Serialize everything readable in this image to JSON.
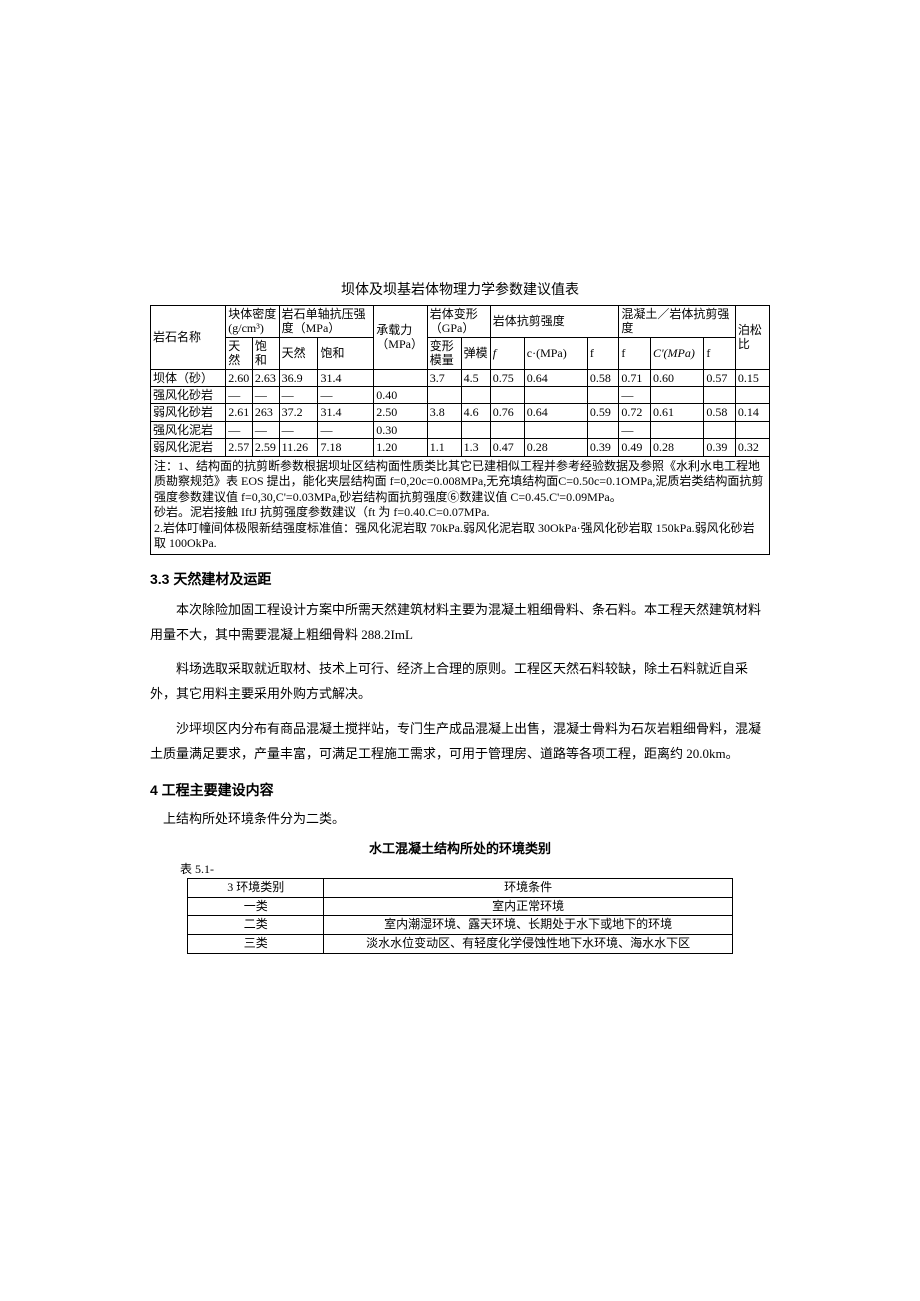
{
  "table1": {
    "title": "坝体及坝基岩体物理力学参数建议值表",
    "headers": {
      "h1": "岩石名称",
      "h2": "块体密度",
      "h2_unit": "(g/cm³)",
      "h3": "岩石单轴抗压强度（MPa）",
      "h4": "承载力（MPa）",
      "h5": "岩体变形（GPa）",
      "h6": "岩体抗剪强度",
      "h7": "混凝土／岩体抗剪强度",
      "h8": "泊松比",
      "sub_natural": "天然",
      "sub_sat": "饱和",
      "sub_deform": "变形模量",
      "sub_elastic": "弹模",
      "sub_f": "f",
      "sub_c": "c·(MPa)",
      "sub_fp": "f",
      "sub_fp2": "f",
      "sub_cp": "C'(MPa)",
      "sub_fp3": "f"
    },
    "rows": [
      {
        "name": "坝体（砂）",
        "d1": "2.60",
        "d2": "2.63",
        "uc1": "36.9",
        "uc2": "31.4",
        "bc": "",
        "dm": "3.7",
        "em": "4.5",
        "f1": "0.75",
        "c1": "0.64",
        "fp1": "0.58",
        "fp2": "0.71",
        "cp": "0.60",
        "fp3": "0.57",
        "pr": "0.15"
      },
      {
        "name": "强风化砂岩",
        "d1": "—",
        "d2": "—",
        "uc1": "—",
        "uc2": "—",
        "bc": "0.40",
        "dm": "",
        "em": "",
        "f1": "",
        "c1": "",
        "fp1": "",
        "fp2": "—",
        "cp": "",
        "fp3": "",
        "pr": ""
      },
      {
        "name": "弱风化砂岩",
        "d1": "2.61",
        "d2": "263",
        "uc1": "37.2",
        "uc2": "31.4",
        "bc": "2.50",
        "dm": "3.8",
        "em": "4.6",
        "f1": "0.76",
        "c1": "0.64",
        "fp1": "0.59",
        "fp2": "0.72",
        "cp": "0.61",
        "fp3": "0.58",
        "pr": "0.14"
      },
      {
        "name": "强风化泥岩",
        "d1": "—",
        "d2": "—",
        "uc1": "—",
        "uc2": "—",
        "bc": "0.30",
        "dm": "",
        "em": "",
        "f1": "",
        "c1": "",
        "fp1": "",
        "fp2": "—",
        "cp": "",
        "fp3": "",
        "pr": ""
      },
      {
        "name": "弱风化泥岩",
        "d1": "2.57",
        "d2": "2.59",
        "uc1": "11.26",
        "uc2": "7.18",
        "bc": "1.20",
        "dm": "1.1",
        "em": "1.3",
        "f1": "0.47",
        "c1": "0.28",
        "fp1": "0.39",
        "fp2": "0.49",
        "cp": "0.28",
        "fp3": "0.39",
        "pr": "0.32"
      }
    ],
    "note": "注：1、结构面的抗剪断参数根据坝址区结构面性质类比其它已建相似工程并参考经验数据及参照《水利水电工程地质勘察规范》表 EOS 提出，能化夹层结构面 f=0,20c=0.008MPa,无充填结构面C=0.50c=0.1OMPa,泥质岩类结构面抗剪强度参数建议值 f=0,30,C'=0.03MPa,砂岩结构面抗剪强度⑥数建议值 C=0.45.C'=0.09MPa。\n砂岩。泥岩接触 IftJ 抗剪强度参数建议（ft 为 f=0.40.C=0.07MPa.\n2.岩体叮幢间体极限新结强度标准值：强风化泥岩取 70kPa.弱风化泥岩取 30OkPa·强风化砂岩取 150kPa.弱风化砂岩取 100OkPa."
  },
  "section33_title": "3.3 天然建材及运距",
  "section33_p1": "本次除险加固工程设计方案中所需天然建筑材料主要为混凝土粗细骨料、条石料。本工程天然建筑材料用量不大，其中需要混凝上粗细骨料 288.2ImL",
  "section33_p2": "料场选取采取就近取材、技术上可行、经济上合理的原则。工程区天然石料较缺，除土石料就近自采外，其它用料主要采用外购方式解决。",
  "section33_p3": "沙坪坝区内分布有商品混凝土搅拌站，专门生产成品混凝上出售，混凝士骨料为石灰岩粗细骨料，混凝土质量满足要求，产量丰富，可满足工程施工需求，可用于管理房、道路等各项工程，距离约 20.0km。",
  "section4_title": "4 工程主要建设内容",
  "section4_p1": "上结构所处环境条件分为二类。",
  "table2": {
    "caption": "水工混凝土结构所处的环境类别",
    "label": "表 5.1-",
    "header_left": "3 环境类别",
    "header_right": "环境条件",
    "rows": [
      {
        "k": "一类",
        "v": "室内正常环境"
      },
      {
        "k": "二类",
        "v": "室内潮湿环境、露天环境、长期处于水下或地下的环境"
      },
      {
        "k": "三类",
        "v": "淡水水位变动区、有轻度化学侵蚀性地下水环境、海水水下区"
      }
    ]
  }
}
